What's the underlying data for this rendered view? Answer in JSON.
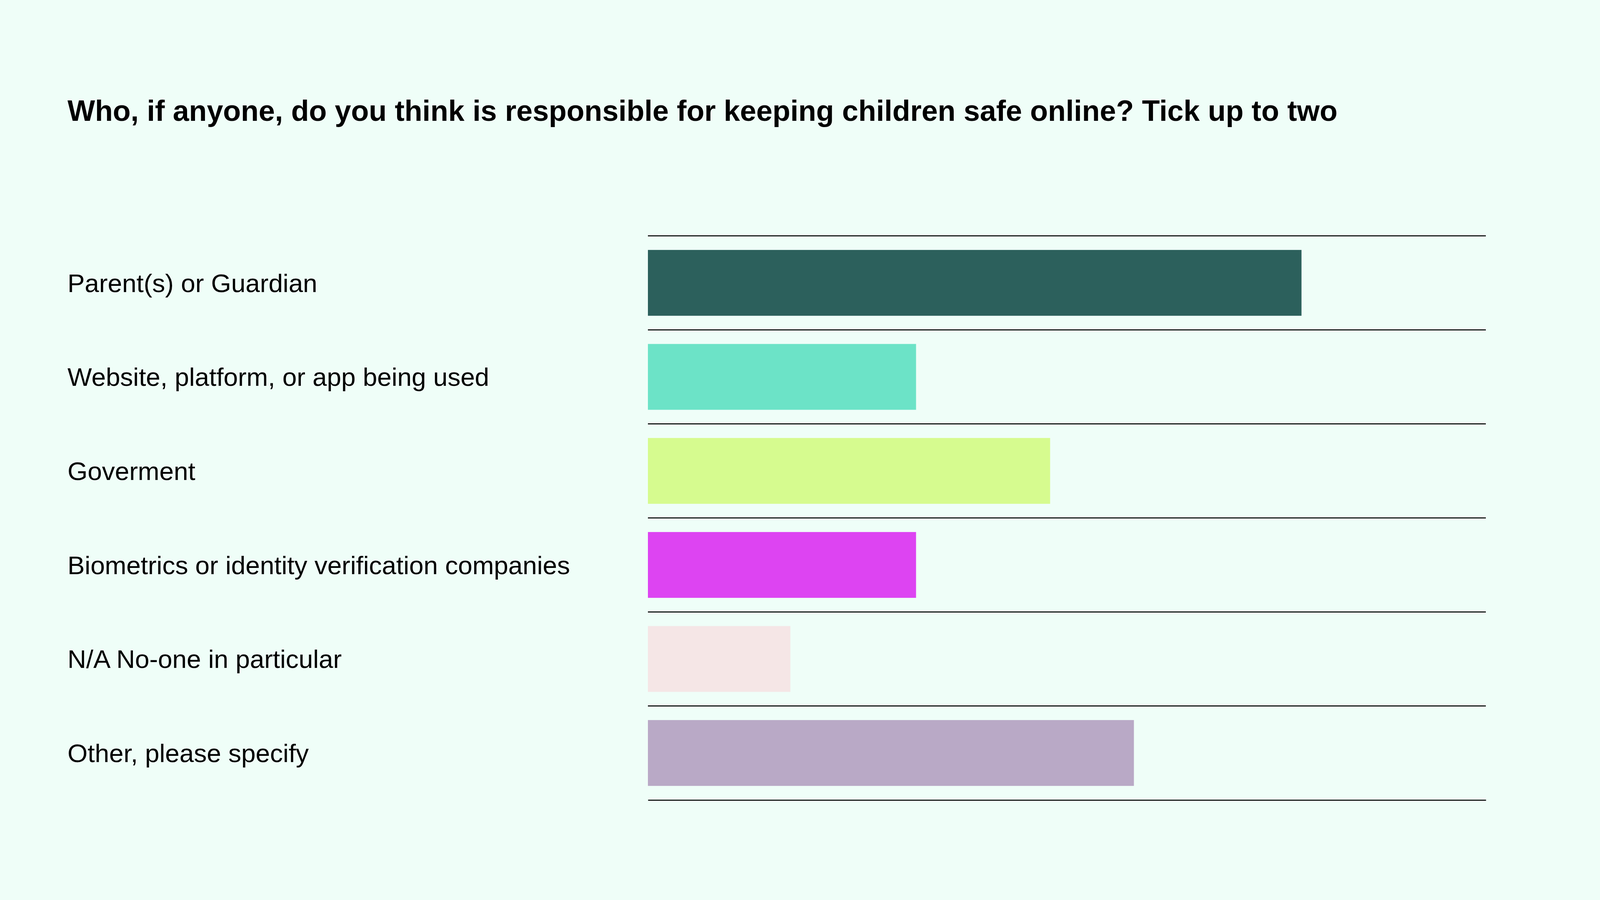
{
  "chart_data": {
    "type": "bar",
    "orientation": "horizontal",
    "title": "Who, if anyone, do you think is responsible for keeping children safe online? Tick up to two",
    "categories": [
      "Parent(s) or Guardian",
      "Website, platform, or app being used",
      "Goverment",
      "Biometrics or identity verification companies",
      "N/A No-one in particular",
      "Other, please specify"
    ],
    "values": [
      78,
      32,
      48,
      32,
      17,
      58
    ],
    "colors": [
      "#2c605c",
      "#6ce3c7",
      "#d6fb8f",
      "#dd44f2",
      "#f5e6e6",
      "#b9a9c6"
    ],
    "xlim": [
      0,
      100
    ],
    "tick_labels": false,
    "grid": false
  }
}
